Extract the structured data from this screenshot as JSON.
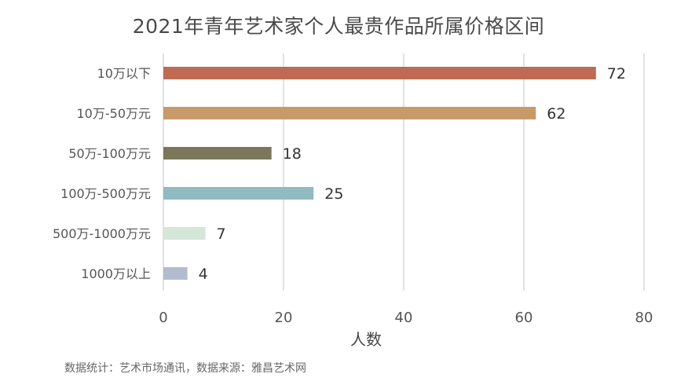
{
  "chart_data": {
    "type": "bar",
    "orientation": "horizontal",
    "title": "2021年青年艺术家个人最贵作品所属价格区间",
    "categories": [
      "10万以下",
      "10万-50万元",
      "50万-100万元",
      "100万-500万元",
      "500万-1000万元",
      "1000万以上"
    ],
    "values": [
      72,
      62,
      18,
      25,
      7,
      4
    ],
    "colors": [
      "#bf6a52",
      "#c79a6a",
      "#7a775c",
      "#8fbbc1",
      "#d3e6d8",
      "#b2bccd"
    ],
    "xlabel": "人数",
    "ylabel": "",
    "xlim": [
      0,
      80
    ],
    "xticks": [
      0,
      20,
      40,
      60,
      80
    ],
    "grid": true
  },
  "source_note": "数据统计：艺术市场通讯，数据来源：雅昌艺术网"
}
